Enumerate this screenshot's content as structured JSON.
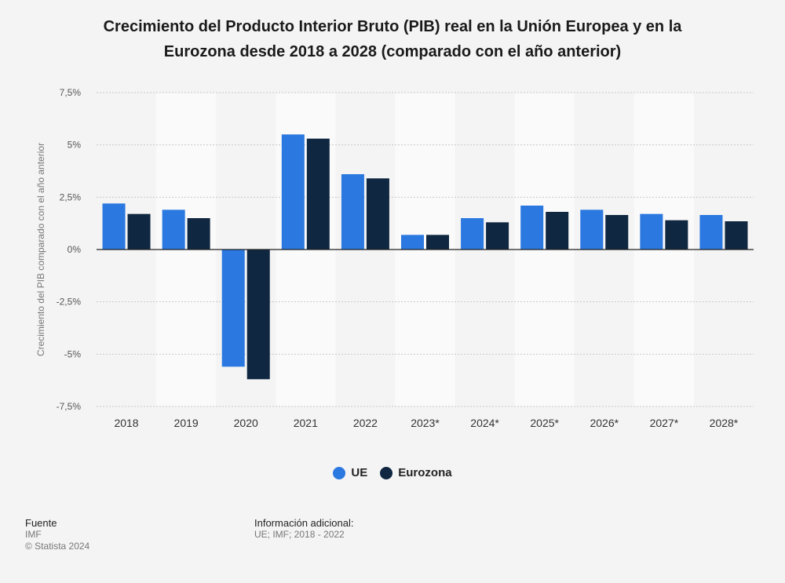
{
  "title_lines": [
    "Crecimiento del Producto Interior Bruto (PIB) real en la Unión Europea y en la",
    "Eurozona desde 2018 a 2028 (comparado con el año anterior)"
  ],
  "colors": {
    "ue": "#2a78e0",
    "eurozona": "#0f2741",
    "grid": "#c8c8c8",
    "band": "#fafafa",
    "zero": "#222222"
  },
  "chart_data": {
    "type": "bar",
    "ylabel": "Crecimiento del PIB comparado con el año anterior",
    "ylim": [
      -7.5,
      7.5
    ],
    "yticks": [
      7.5,
      5,
      2.5,
      0,
      -2.5,
      -5,
      -7.5
    ],
    "ytick_labels": [
      "7,5%",
      "5%",
      "2,5%",
      "0%",
      "-2,5%",
      "-5%",
      "-7,5%"
    ],
    "categories": [
      "2018",
      "2019",
      "2020",
      "2021",
      "2022",
      "2023*",
      "2024*",
      "2025*",
      "2026*",
      "2027*",
      "2028*"
    ],
    "series": [
      {
        "name": "UE",
        "values": [
          2.2,
          1.9,
          -5.6,
          5.5,
          3.6,
          0.7,
          1.5,
          2.1,
          1.9,
          1.7,
          1.65
        ]
      },
      {
        "name": "Eurozona",
        "values": [
          1.7,
          1.5,
          -6.2,
          5.3,
          3.4,
          0.7,
          1.3,
          1.8,
          1.65,
          1.4,
          1.35
        ]
      }
    ],
    "legend_position": "bottom",
    "grid": true
  },
  "footer": {
    "source_heading": "Fuente",
    "source_lines": [
      "IMF",
      "© Statista 2024"
    ],
    "info_heading": "Información adicional:",
    "info_lines": [
      "UE; IMF; 2018 - 2022"
    ]
  }
}
